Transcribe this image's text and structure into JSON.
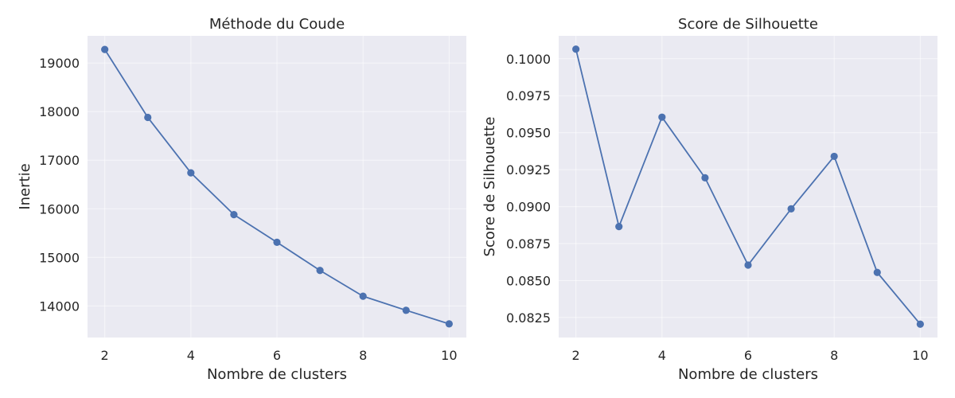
{
  "colors": {
    "series": "#4c72b0",
    "plot_bg": "#eaeaf2",
    "grid": "#ffffff",
    "text": "#262626"
  },
  "chart_data": [
    {
      "type": "line",
      "title": "Méthode du Coude",
      "xlabel": "Nombre de clusters",
      "ylabel": "Inertie",
      "x": [
        2,
        3,
        4,
        5,
        6,
        7,
        8,
        9,
        10
      ],
      "series": [
        {
          "values": [
            19280,
            17880,
            16740,
            15880,
            15310,
            14730,
            14200,
            13910,
            13630
          ]
        }
      ],
      "xlim": [
        1.6,
        10.4
      ],
      "ylim": [
        13350,
        19560
      ],
      "xticks": [
        2,
        4,
        6,
        8,
        10
      ],
      "yticks": [
        14000,
        15000,
        16000,
        17000,
        18000,
        19000
      ],
      "grid": true,
      "marker": "circle"
    },
    {
      "type": "line",
      "title": "Score de Silhouette",
      "xlabel": "Nombre de clusters",
      "ylabel": "Score de Silhouette",
      "x": [
        2,
        3,
        4,
        5,
        6,
        7,
        8,
        9,
        10
      ],
      "series": [
        {
          "values": [
            0.10065,
            0.08865,
            0.09605,
            0.09195,
            0.08605,
            0.08985,
            0.0934,
            0.08555,
            0.08205
          ]
        }
      ],
      "xlim": [
        1.6,
        10.4
      ],
      "ylim": [
        0.08115,
        0.10155
      ],
      "xticks": [
        2,
        4,
        6,
        8,
        10
      ],
      "yticks": [
        "0.0825",
        "0.0850",
        "0.0875",
        "0.0900",
        "0.0925",
        "0.0950",
        "0.0975",
        "0.1000"
      ],
      "grid": true,
      "marker": "circle"
    }
  ]
}
